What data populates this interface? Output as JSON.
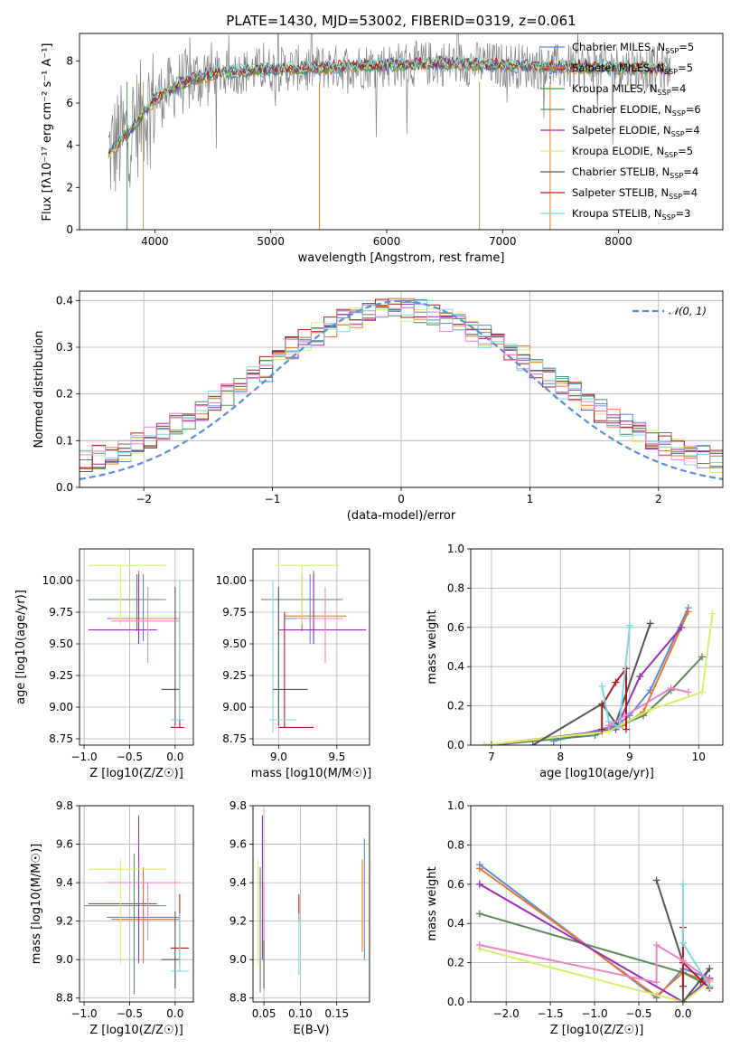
{
  "colors": {
    "Chabrier MILES": "#5b8cdc",
    "Salpeter MILES": "#e9782a",
    "Kroupa MILES": "#2ea82e",
    "Chabrier ELODIE": "#5a8a5a",
    "Salpeter ELODIE": "#9b2eb8",
    "Kroupa ELODIE": "#d6f06a",
    "Chabrier STELIB": "#555555",
    "Salpeter STELIB": "#b01c1c",
    "Kroupa STELIB": "#7ad9e0",
    "pink": "#ee82c4",
    "gauss": "#5b8cdc",
    "grid": "#b0b0b0"
  },
  "chart_data": [
    {
      "id": "spectrum",
      "type": "line",
      "title": "PLATE=1430, MJD=53002, FIBERID=0319, z=0.061",
      "xlabel": "wavelength [Angstrom, rest frame]",
      "ylabel": "Flux [fλ10⁻¹⁷ erg cm⁻² s⁻¹ A⁻¹]",
      "xlim": [
        3350,
        8900
      ],
      "ylim": [
        0,
        9.3
      ],
      "xticks": [
        4000,
        5000,
        6000,
        7000,
        8000
      ],
      "yticks": [
        0,
        2,
        4,
        6,
        8
      ],
      "continuum": {
        "x": [
          3600,
          3700,
          3800,
          4000,
          4200,
          4500,
          5000,
          5500,
          6000,
          6500,
          7000,
          7500,
          8000,
          8400
        ],
        "y": [
          3.6,
          4.2,
          4.8,
          6.2,
          6.9,
          7.4,
          7.6,
          7.7,
          7.8,
          7.9,
          7.8,
          7.7,
          7.7,
          7.6
        ]
      },
      "legend": [
        {
          "name": "Chabrier MILES",
          "sub": "5"
        },
        {
          "name": "Salpeter MILES",
          "sub": "5"
        },
        {
          "name": "Kroupa MILES",
          "sub": "4"
        },
        {
          "name": "Chabrier ELODIE",
          "sub": "6"
        },
        {
          "name": "Salpeter ELODIE",
          "sub": "4"
        },
        {
          "name": "Kroupa ELODIE",
          "sub": "5"
        },
        {
          "name": "Chabrier STELIB",
          "sub": "4"
        },
        {
          "name": "Salpeter STELIB",
          "sub": "4"
        },
        {
          "name": "Kroupa STELIB",
          "sub": "3"
        }
      ],
      "legend_placement": "right"
    },
    {
      "id": "residuals",
      "type": "line",
      "xlabel": "(data-model)/error",
      "ylabel": "Normed distribution",
      "xlim": [
        -2.5,
        2.5
      ],
      "ylim": [
        0,
        0.42
      ],
      "xticks": [
        -2,
        -1,
        0,
        1,
        2
      ],
      "yticks": [
        0.0,
        0.1,
        0.2,
        0.3,
        0.4
      ],
      "legend": [
        "𝒩(0, 1)"
      ],
      "legend_placement": "top-right",
      "grid": true
    },
    {
      "id": "age-vs-Z",
      "type": "scatter",
      "xlabel": "Z [log10(Z/Z☉)]",
      "ylabel": "age  [log10(age/yr)]",
      "xlim": [
        -1.05,
        0.2
      ],
      "ylim": [
        8.7,
        10.25
      ],
      "xticks": [
        -1.0,
        -0.5,
        0.0
      ],
      "yticks": [
        8.75,
        9.0,
        9.25,
        9.5,
        9.75,
        10.0
      ],
      "points": [
        {
          "s": "Chabrier MILES",
          "x": -0.35,
          "y": 9.7,
          "xe": [
            -0.75,
            0.05
          ],
          "ye": [
            9.52,
            10.05
          ]
        },
        {
          "s": "Salpeter MILES",
          "x": -0.4,
          "y": 9.7,
          "xe": [
            -0.7,
            0.05
          ],
          "ye": [
            9.55,
            10.08
          ]
        },
        {
          "s": "Chabrier ELODIE",
          "x": -0.42,
          "y": 9.85,
          "xe": [
            -0.95,
            -0.1
          ],
          "ye": [
            9.6,
            10.05
          ]
        },
        {
          "s": "Salpeter ELODIE",
          "x": -0.4,
          "y": 9.61,
          "xe": [
            -0.95,
            -0.2
          ],
          "ye": [
            9.5,
            10.05
          ]
        },
        {
          "s": "Kroupa ELODIE",
          "x": -0.6,
          "y": 10.12,
          "xe": [
            -0.95,
            -0.1
          ],
          "ye": [
            9.65,
            10.12
          ]
        },
        {
          "s": "Chabrier STELIB",
          "x": 0.0,
          "y": 9.14,
          "xe": [
            -0.15,
            0.05
          ],
          "ye": [
            8.85,
            9.95
          ]
        },
        {
          "s": "Salpeter STELIB",
          "x": 0.05,
          "y": 8.84,
          "xe": [
            -0.05,
            0.1
          ],
          "ye": [
            8.84,
            9.75
          ]
        },
        {
          "s": "Kroupa STELIB",
          "x": 0.05,
          "y": 8.9,
          "xe": [
            -0.05,
            0.1
          ],
          "ye": [
            8.9,
            10.0
          ]
        },
        {
          "s": "pink",
          "x": -0.3,
          "y": 9.68,
          "xe": [
            -0.7,
            0.05
          ],
          "ye": [
            9.35,
            9.95
          ]
        }
      ]
    },
    {
      "id": "age-vs-mass",
      "type": "scatter",
      "xlabel": "mass [log10(M/M☉)]",
      "ylabel": "",
      "xlim": [
        8.78,
        9.78
      ],
      "ylim": [
        8.7,
        10.25
      ],
      "xticks": [
        9.0,
        9.5
      ],
      "yticks": [
        8.75,
        9.0,
        9.25,
        9.5,
        9.75,
        10.0
      ],
      "points": [
        {
          "s": "Chabrier MILES",
          "x": 9.27,
          "y": 9.7,
          "xe": [
            9.05,
            9.55
          ],
          "ye": [
            9.5,
            10.05
          ]
        },
        {
          "s": "Salpeter MILES",
          "x": 9.3,
          "y": 9.72,
          "xe": [
            9.05,
            9.58
          ],
          "ye": [
            9.55,
            10.08
          ]
        },
        {
          "s": "Chabrier ELODIE",
          "x": 9.2,
          "y": 9.85,
          "xe": [
            8.85,
            9.55
          ],
          "ye": [
            9.6,
            10.05
          ]
        },
        {
          "s": "Salpeter ELODIE",
          "x": 9.3,
          "y": 9.61,
          "xe": [
            9.0,
            9.75
          ],
          "ye": [
            9.5,
            10.05
          ]
        },
        {
          "s": "Kroupa ELODIE",
          "x": 9.2,
          "y": 10.12,
          "xe": [
            8.97,
            9.52
          ],
          "ye": [
            9.65,
            10.12
          ]
        },
        {
          "s": "Chabrier STELIB",
          "x": 9.0,
          "y": 9.14,
          "xe": [
            8.95,
            9.25
          ],
          "ye": [
            8.85,
            9.95
          ]
        },
        {
          "s": "Salpeter STELIB",
          "x": 9.05,
          "y": 8.84,
          "xe": [
            9.0,
            9.3
          ],
          "ye": [
            8.84,
            9.75
          ]
        },
        {
          "s": "Kroupa STELIB",
          "x": 8.95,
          "y": 8.9,
          "xe": [
            8.92,
            9.15
          ],
          "ye": [
            8.8,
            10.0
          ]
        },
        {
          "s": "pink",
          "x": 9.4,
          "y": 9.7,
          "xe": [
            9.15,
            9.55
          ],
          "ye": [
            9.35,
            9.95
          ]
        }
      ]
    },
    {
      "id": "weight-vs-age",
      "type": "line",
      "xlabel": "age  [log10(age/yr)]",
      "ylabel": "mass weight",
      "xlim": [
        6.7,
        10.35
      ],
      "ylim": [
        0,
        1.0
      ],
      "xticks": [
        7,
        8,
        9,
        10
      ],
      "yticks": [
        0.0,
        0.2,
        0.4,
        0.6,
        0.8,
        1.0
      ],
      "series": [
        {
          "s": "Chabrier MILES",
          "x": [
            7.9,
            8.8,
            9.0,
            9.3,
            9.85
          ],
          "y": [
            0.02,
            0.1,
            0.15,
            0.28,
            0.7
          ]
        },
        {
          "s": "Salpeter MILES",
          "x": [
            6.9,
            8.6,
            8.9,
            9.2,
            9.85
          ],
          "y": [
            0.0,
            0.07,
            0.1,
            0.17,
            0.68
          ]
        },
        {
          "s": "Chabrier ELODIE",
          "x": [
            7.0,
            8.5,
            9.2,
            9.6,
            10.05
          ],
          "y": [
            0.0,
            0.05,
            0.15,
            0.28,
            0.45
          ]
        },
        {
          "s": "Salpeter ELODIE",
          "x": [
            7.0,
            8.8,
            9.15,
            9.75
          ],
          "y": [
            0.0,
            0.08,
            0.35,
            0.6
          ]
        },
        {
          "s": "Kroupa ELODIE",
          "x": [
            6.9,
            8.7,
            9.3,
            10.05,
            10.2
          ],
          "y": [
            0.0,
            0.07,
            0.18,
            0.27,
            0.67
          ]
        },
        {
          "s": "Chabrier STELIB",
          "x": [
            7.6,
            8.6,
            8.8,
            9.3
          ],
          "y": [
            0.0,
            0.21,
            0.11,
            0.62
          ]
        },
        {
          "s": "Salpeter STELIB",
          "x": [
            8.6,
            8.6,
            8.8,
            8.95,
            8.95
          ],
          "y": [
            0.08,
            0.2,
            0.32,
            0.39,
            0.08
          ]
        },
        {
          "s": "Kroupa STELIB",
          "x": [
            8.6,
            8.7,
            8.85,
            9.0,
            9.0
          ],
          "y": [
            0.3,
            0.12,
            0.09,
            0.6,
            0.61
          ]
        },
        {
          "s": "pink",
          "x": [
            8.7,
            9.6,
            9.85
          ],
          "y": [
            0.1,
            0.29,
            0.27
          ]
        }
      ]
    },
    {
      "id": "mass-vs-Z",
      "type": "scatter",
      "xlabel": "Z [log10(Z/Z☉)]",
      "ylabel": "mass [log10(M/M☉)]",
      "xlim": [
        -1.05,
        0.2
      ],
      "ylim": [
        8.78,
        9.8
      ],
      "xticks": [
        -1.0,
        -0.5,
        0.0
      ],
      "yticks": [
        8.8,
        9.0,
        9.2,
        9.4,
        9.6,
        9.8
      ],
      "points": [
        {
          "s": "Chabrier MILES",
          "x": -0.35,
          "y": 9.22,
          "xe": [
            -0.75,
            0.05
          ],
          "ye": [
            9.0,
            9.45
          ]
        },
        {
          "s": "Salpeter MILES",
          "x": -0.35,
          "y": 9.21,
          "xe": [
            -0.7,
            0.05
          ],
          "ye": [
            8.98,
            9.48
          ]
        },
        {
          "s": "Chabrier ELODIE",
          "x": -0.45,
          "y": 9.28,
          "xe": [
            -1.0,
            -0.1
          ],
          "ye": [
            8.82,
            9.55
          ]
        },
        {
          "s": "Salpeter ELODIE",
          "x": -0.4,
          "y": 9.29,
          "xe": [
            -0.95,
            -0.2
          ],
          "ye": [
            8.98,
            9.75
          ]
        },
        {
          "s": "Kroupa ELODIE",
          "x": -0.6,
          "y": 9.47,
          "xe": [
            -0.95,
            -0.1
          ],
          "ye": [
            8.98,
            9.52
          ]
        },
        {
          "s": "Chabrier STELIB",
          "x": 0.0,
          "y": 9.0,
          "xe": [
            -0.15,
            0.05
          ],
          "ye": [
            8.85,
            9.25
          ]
        },
        {
          "s": "Salpeter STELIB",
          "x": 0.05,
          "y": 9.06,
          "xe": [
            -0.05,
            0.15
          ],
          "ye": [
            8.98,
            9.34
          ]
        },
        {
          "s": "Kroupa STELIB",
          "x": 0.05,
          "y": 8.94,
          "xe": [
            -0.05,
            0.15
          ],
          "ye": [
            8.94,
            9.24
          ]
        },
        {
          "s": "pink",
          "x": -0.3,
          "y": 9.4,
          "xe": [
            -0.75,
            0.05
          ],
          "ye": [
            9.1,
            9.4
          ]
        }
      ]
    },
    {
      "id": "mass-vs-ebv",
      "type": "scatter",
      "xlabel": "E(B-V)",
      "ylabel": "",
      "xlim": [
        0.035,
        0.195
      ],
      "ylim": [
        8.78,
        9.8
      ],
      "xticks": [
        0.05,
        0.1,
        0.15
      ],
      "yticks": [
        8.8,
        9.0,
        9.2,
        9.4,
        9.6,
        9.8
      ],
      "points": [
        {
          "s": "Chabrier MILES",
          "x": 0.188,
          "ye": [
            9.0,
            9.63
          ]
        },
        {
          "s": "Salpeter MILES",
          "x": 0.185,
          "ye": [
            9.04,
            9.52
          ]
        },
        {
          "s": "Chabrier ELODIE",
          "x": 0.045,
          "ye": [
            8.83,
            9.48
          ]
        },
        {
          "s": "Salpeter ELODIE",
          "x": 0.048,
          "ye": [
            9.0,
            9.75
          ]
        },
        {
          "s": "Kroupa ELODIE",
          "x": 0.042,
          "ye": [
            8.98,
            9.52
          ]
        },
        {
          "s": "Chabrier STELIB",
          "x": 0.05,
          "ye": [
            8.85,
            9.22
          ]
        },
        {
          "s": "Salpeter STELIB",
          "x": 0.098,
          "ye": [
            9.2,
            9.34
          ]
        },
        {
          "s": "Kroupa STELIB",
          "x": 0.098,
          "ye": [
            8.92,
            9.24
          ]
        },
        {
          "s": "pink",
          "x": 0.05,
          "ye": [
            9.1,
            9.4
          ]
        }
      ]
    },
    {
      "id": "weight-vs-Z",
      "type": "line",
      "xlabel": "Z [log10(Z/Z☉)]",
      "ylabel": "mass weight",
      "xlim": [
        -2.4,
        0.45
      ],
      "ylim": [
        0,
        1.0
      ],
      "xticks": [
        -2.0,
        -1.5,
        -1.0,
        -0.5,
        0.0
      ],
      "yticks": [
        0.0,
        0.2,
        0.4,
        0.6,
        0.8,
        1.0
      ],
      "series": [
        {
          "s": "Chabrier MILES",
          "x": [
            -2.3,
            -0.3,
            0.0,
            0.3
          ],
          "y": [
            0.7,
            0.02,
            0.17,
            0.12
          ]
        },
        {
          "s": "Salpeter MILES",
          "x": [
            -2.3,
            -0.3,
            0.0,
            0.3
          ],
          "y": [
            0.68,
            0.03,
            0.15,
            0.1
          ]
        },
        {
          "s": "Chabrier ELODIE",
          "x": [
            -2.3,
            0.0,
            0.3
          ],
          "y": [
            0.45,
            0.15,
            0.08
          ]
        },
        {
          "s": "Salpeter ELODIE",
          "x": [
            -2.3,
            0.0,
            0.3
          ],
          "y": [
            0.6,
            0.0,
            0.12
          ]
        },
        {
          "s": "Kroupa ELODIE",
          "x": [
            -2.3,
            0.0,
            0.3
          ],
          "y": [
            0.27,
            0.0,
            0.1
          ]
        },
        {
          "s": "Chabrier STELIB",
          "x": [
            -0.3,
            0.0,
            0.0,
            0.3,
            0.2
          ],
          "y": [
            0.62,
            0.2,
            0.0,
            0.17,
            0.1
          ]
        },
        {
          "s": "Salpeter STELIB",
          "x": [
            0.0,
            0.0,
            0.0,
            0.3
          ],
          "y": [
            0.38,
            0.08,
            0.2,
            0.07
          ]
        },
        {
          "s": "Kroupa STELIB",
          "x": [
            0.0,
            0.0,
            0.3
          ],
          "y": [
            0.6,
            0.3,
            0.08
          ]
        },
        {
          "s": "pink",
          "x": [
            -2.3,
            -0.3,
            -0.3,
            0.0,
            0.3
          ],
          "y": [
            0.29,
            0.1,
            0.29,
            0.21,
            0.11
          ]
        }
      ]
    }
  ]
}
